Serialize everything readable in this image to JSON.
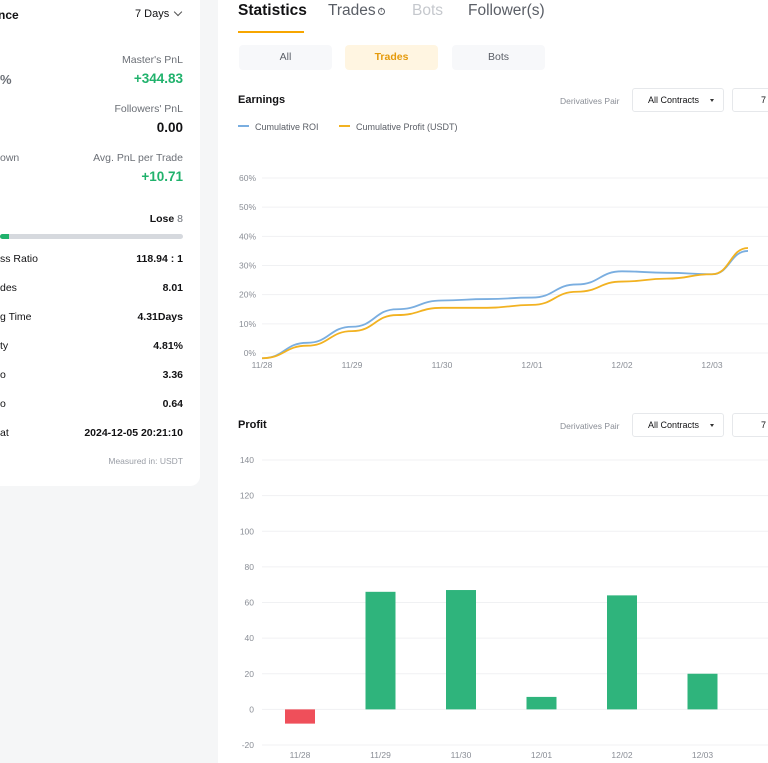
{
  "left_panel": {
    "title": "nce",
    "period": "7 Days",
    "masters_pnl": {
      "label": "Master's PnL",
      "value": "+344.83"
    },
    "pct_cut": "%",
    "followers_pnl": {
      "label": "Followers' PnL",
      "value": "0.00"
    },
    "drawdown_cut": "own",
    "avg_pnl": {
      "label": "Avg. PnL per Trade",
      "value": "+10.71"
    },
    "lose_label": "Lose",
    "lose_count": "8",
    "win_fraction": 0.05,
    "rows": [
      {
        "label": "ss Ratio",
        "value": "118.94 : 1"
      },
      {
        "label": "des",
        "value": "8.01"
      },
      {
        "label": "g Time",
        "value": "4.31Days"
      },
      {
        "label": "ty",
        "value": "4.81%"
      },
      {
        "label": "o",
        "value": "3.36"
      },
      {
        "label": "o",
        "value": "0.64"
      },
      {
        "label": "at",
        "value": "2024-12-05 20:21:10"
      }
    ],
    "measured": "Measured in: USDT"
  },
  "tabs": {
    "statistics": "Statistics",
    "trades": "Trades",
    "info_glyph": "i",
    "bots": "Bots",
    "followers": "Follower(s)"
  },
  "segments": {
    "all": "All",
    "trades": "Trades",
    "bots": "Bots"
  },
  "earnings": {
    "title": "Earnings",
    "filter_label": "Derivatives Pair",
    "filter_value": "All Contracts",
    "period_value": "7"
  },
  "profit": {
    "title": "Profit",
    "filter_label": "Derivatives Pair",
    "filter_value": "All Contracts",
    "period_value": "7"
  },
  "colors": {
    "roi": "#7aaee0",
    "profit_line": "#f2b221",
    "gain": "#2fb47c",
    "loss": "#ef4f5a",
    "accent": "#f7a600"
  },
  "chart_data": [
    {
      "type": "line",
      "title": "Earnings",
      "categories": [
        "11/28",
        "11/29",
        "11/30",
        "12/01",
        "12/02",
        "12/03"
      ],
      "yticks": [
        "0%",
        "10%",
        "20%",
        "30%",
        "40%",
        "50%",
        "60%"
      ],
      "ylim": [
        0,
        60
      ],
      "x": [
        0,
        0.5,
        1,
        1.5,
        2,
        2.5,
        3,
        3.5,
        4,
        4.5,
        5,
        5.4
      ],
      "series": [
        {
          "name": "Cumulative ROI",
          "values": [
            -1.8,
            3.5,
            9,
            15,
            18,
            18.5,
            19,
            23.5,
            28,
            27.5,
            27,
            35
          ]
        },
        {
          "name": "Cumulative Profit (USDT)",
          "values": [
            -1.8,
            2.5,
            7.5,
            13,
            15.5,
            15.5,
            16.5,
            21,
            24.5,
            25.5,
            27,
            36
          ]
        }
      ],
      "grid": true,
      "legend": "top-left"
    },
    {
      "type": "bar",
      "title": "Profit",
      "categories": [
        "11/28",
        "11/29",
        "11/30",
        "12/01",
        "12/02",
        "12/03"
      ],
      "yticks": [
        "-20",
        "0",
        "20",
        "40",
        "60",
        "80",
        "100",
        "120",
        "140"
      ],
      "ylim": [
        -20,
        140
      ],
      "values": [
        -8,
        66,
        67,
        7,
        64,
        20
      ]
    }
  ]
}
